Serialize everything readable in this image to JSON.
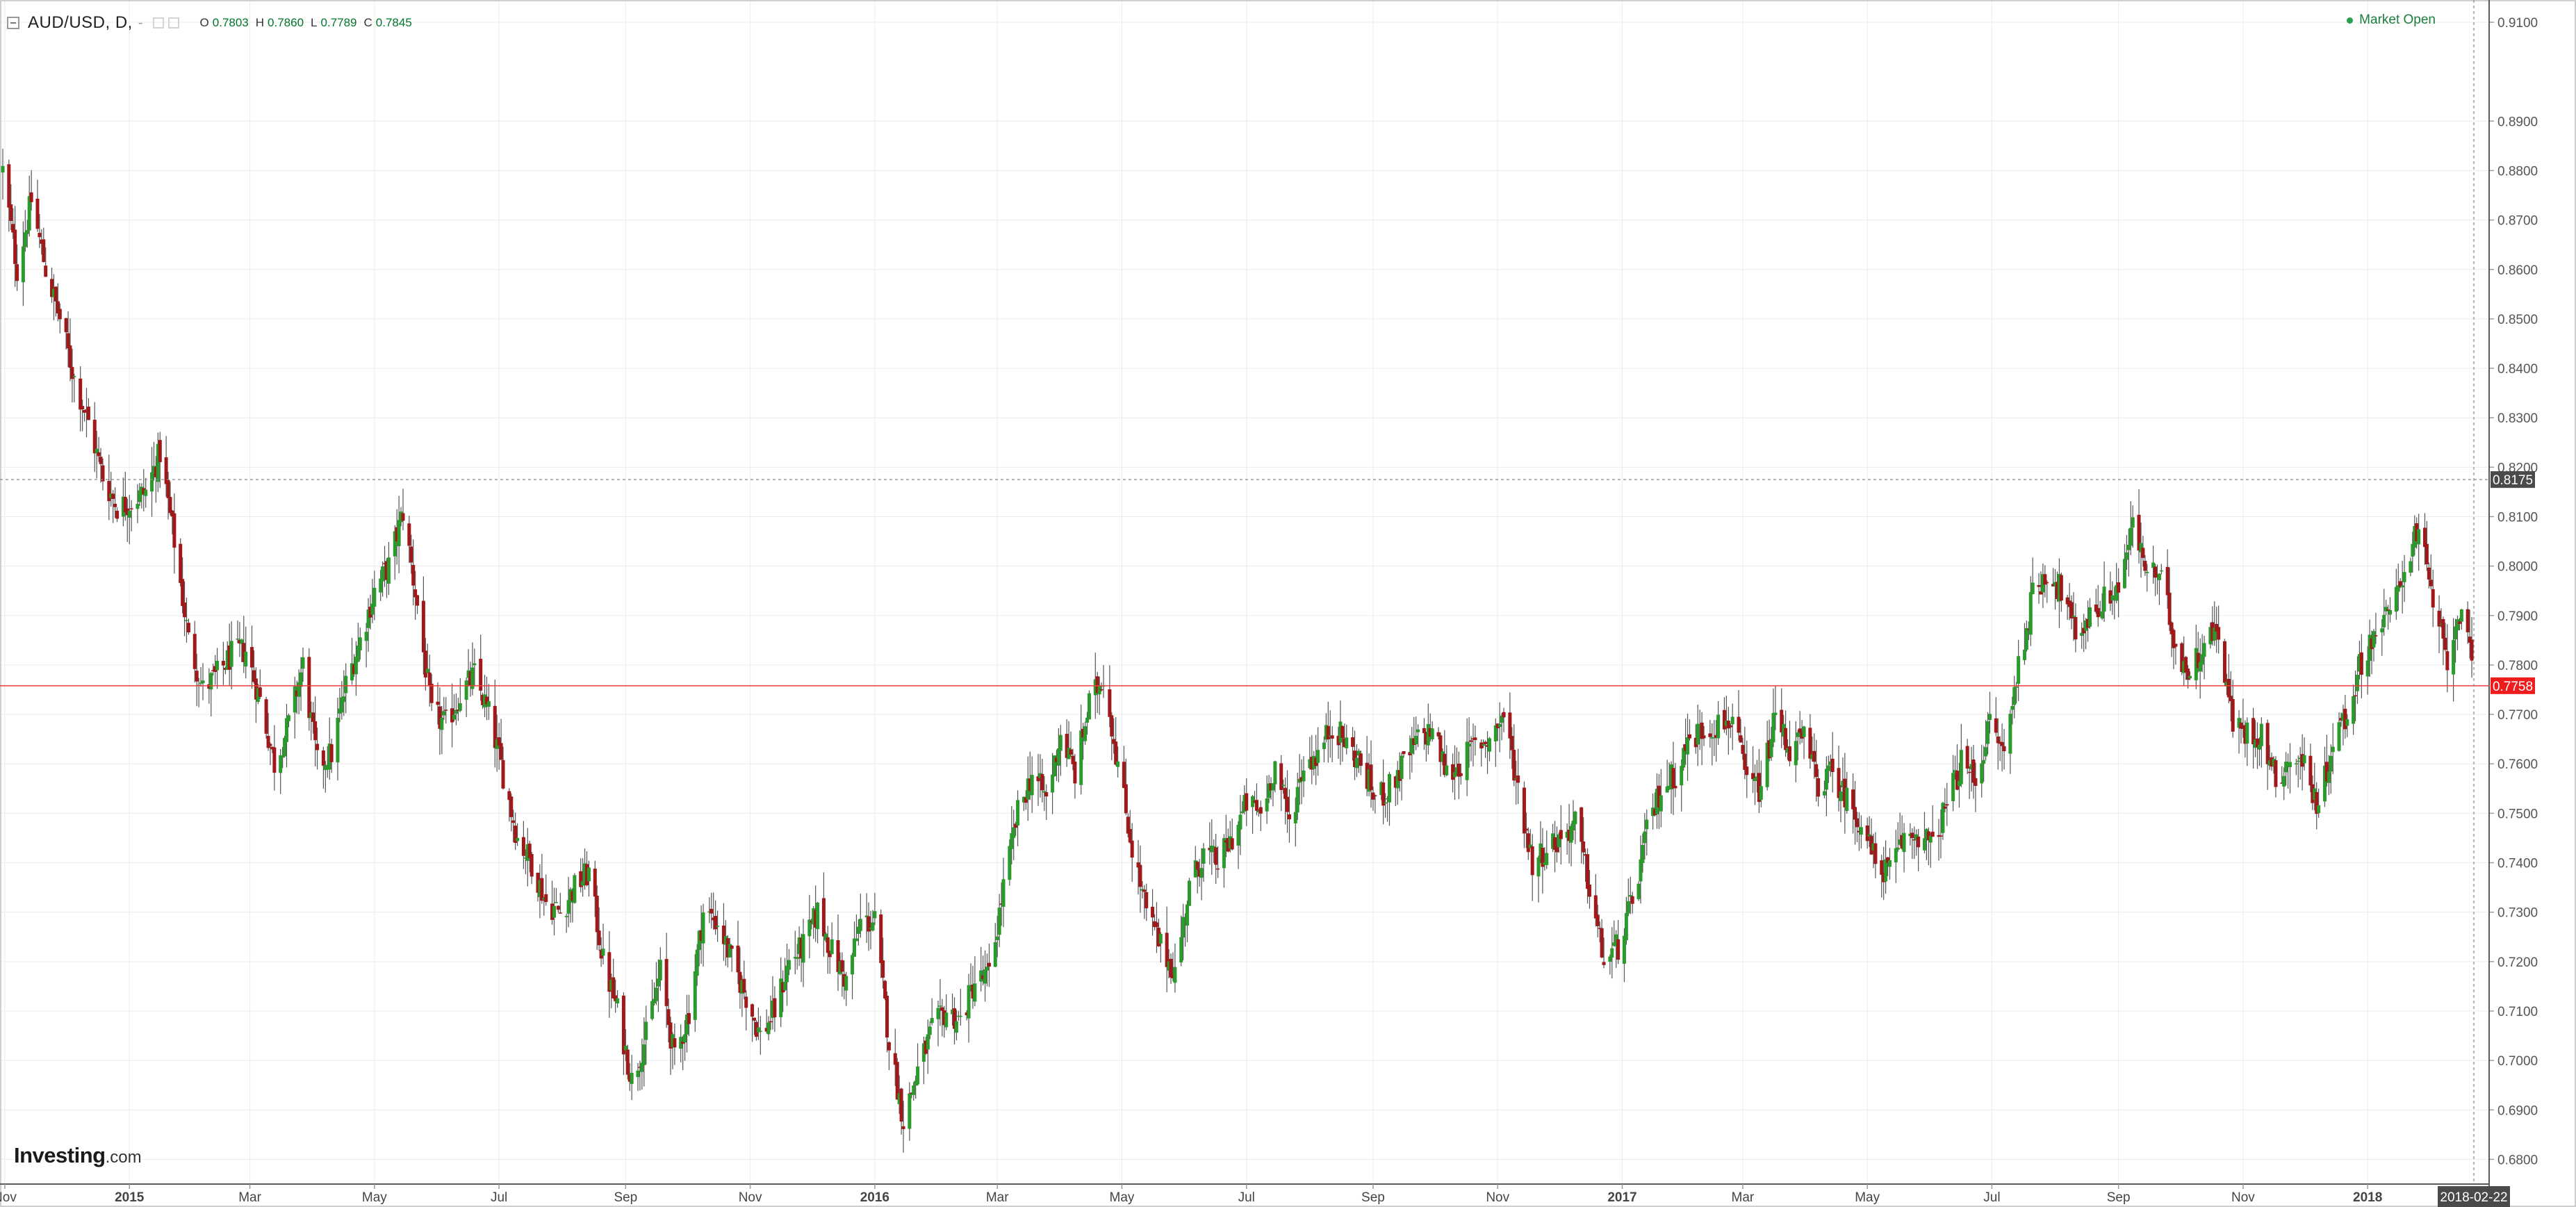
{
  "header": {
    "symbol": "AUD/USD, D,",
    "ohlc": [
      {
        "k": "O",
        "v": "0.7803"
      },
      {
        "k": "H",
        "v": "0.7860"
      },
      {
        "k": "L",
        "v": "0.7789"
      },
      {
        "k": "C",
        "v": "0.7845"
      }
    ]
  },
  "market_status": "Market Open",
  "logo": {
    "main": "Investing",
    "suffix": ".com"
  },
  "colors": {
    "up": "#2a9a2a",
    "down": "#a11818",
    "wick": "#555555",
    "grid": "#ececec",
    "price_line": "#ef3b3b"
  },
  "chart_data": {
    "type": "candlestick",
    "instrument": "AUD/USD",
    "timeframe": "D",
    "date_range": [
      "2014-10-31",
      "2018-02-22"
    ],
    "ylim": [
      0.675,
      0.9145
    ],
    "y_ticks": [
      "0.6800",
      "0.6900",
      "0.7000",
      "0.7100",
      "0.7200",
      "0.7300",
      "0.7400",
      "0.7500",
      "0.7600",
      "0.7700",
      "0.7800",
      "0.7900",
      "0.8000",
      "0.8100",
      "0.8200",
      "0.8300",
      "0.8400",
      "0.8500",
      "0.8600",
      "0.8700",
      "0.8800",
      "0.8900",
      "0.9100"
    ],
    "x_ticks": [
      {
        "label": "Nov",
        "date": "2014-11-01",
        "bold": false
      },
      {
        "label": "2015",
        "date": "2015-01-01",
        "bold": true
      },
      {
        "label": "Mar",
        "date": "2015-03-01",
        "bold": false
      },
      {
        "label": "May",
        "date": "2015-05-01",
        "bold": false
      },
      {
        "label": "Jul",
        "date": "2015-07-01",
        "bold": false
      },
      {
        "label": "Sep",
        "date": "2015-09-01",
        "bold": false
      },
      {
        "label": "Nov",
        "date": "2015-11-01",
        "bold": false
      },
      {
        "label": "2016",
        "date": "2016-01-01",
        "bold": true
      },
      {
        "label": "Mar",
        "date": "2016-03-01",
        "bold": false
      },
      {
        "label": "May",
        "date": "2016-05-01",
        "bold": false
      },
      {
        "label": "Jul",
        "date": "2016-07-01",
        "bold": false
      },
      {
        "label": "Sep",
        "date": "2016-09-01",
        "bold": false
      },
      {
        "label": "Nov",
        "date": "2016-11-01",
        "bold": false
      },
      {
        "label": "2017",
        "date": "2017-01-01",
        "bold": true
      },
      {
        "label": "Mar",
        "date": "2017-03-01",
        "bold": false
      },
      {
        "label": "May",
        "date": "2017-05-01",
        "bold": false
      },
      {
        "label": "Jul",
        "date": "2017-07-01",
        "bold": false
      },
      {
        "label": "Sep",
        "date": "2017-09-01",
        "bold": false
      },
      {
        "label": "Nov",
        "date": "2017-11-01",
        "bold": false
      },
      {
        "label": "2018",
        "date": "2018-01-01",
        "bold": true
      }
    ],
    "current_date": "2018-02-22",
    "current_price": 0.7758,
    "current_price_label": "0.7758",
    "crosshair_price": 0.8175,
    "crosshair_price_label": "0.8175",
    "series": [
      {
        "date": "2014-10-31",
        "close": 0.88
      },
      {
        "date": "2014-11-07",
        "close": 0.86
      },
      {
        "date": "2014-11-14",
        "close": 0.874
      },
      {
        "date": "2014-11-21",
        "close": 0.86
      },
      {
        "date": "2014-11-28",
        "close": 0.85
      },
      {
        "date": "2014-12-05",
        "close": 0.838
      },
      {
        "date": "2014-12-12",
        "close": 0.829
      },
      {
        "date": "2014-12-19",
        "close": 0.818
      },
      {
        "date": "2014-12-26",
        "close": 0.812
      },
      {
        "date": "2015-01-02",
        "close": 0.813
      },
      {
        "date": "2015-01-09",
        "close": 0.815
      },
      {
        "date": "2015-01-16",
        "close": 0.823
      },
      {
        "date": "2015-01-23",
        "close": 0.805
      },
      {
        "date": "2015-01-30",
        "close": 0.785
      },
      {
        "date": "2015-02-06",
        "close": 0.775
      },
      {
        "date": "2015-02-13",
        "close": 0.778
      },
      {
        "date": "2015-02-20",
        "close": 0.782
      },
      {
        "date": "2015-02-27",
        "close": 0.783
      },
      {
        "date": "2015-03-06",
        "close": 0.773
      },
      {
        "date": "2015-03-13",
        "close": 0.76
      },
      {
        "date": "2015-03-20",
        "close": 0.768
      },
      {
        "date": "2015-03-27",
        "close": 0.78
      },
      {
        "date": "2015-04-03",
        "close": 0.76
      },
      {
        "date": "2015-04-10",
        "close": 0.762
      },
      {
        "date": "2015-04-17",
        "close": 0.776
      },
      {
        "date": "2015-04-24",
        "close": 0.785
      },
      {
        "date": "2015-05-01",
        "close": 0.795
      },
      {
        "date": "2015-05-08",
        "close": 0.8
      },
      {
        "date": "2015-05-15",
        "close": 0.811
      },
      {
        "date": "2015-05-22",
        "close": 0.792
      },
      {
        "date": "2015-05-29",
        "close": 0.77
      },
      {
        "date": "2015-06-05",
        "close": 0.768
      },
      {
        "date": "2015-06-12",
        "close": 0.774
      },
      {
        "date": "2015-06-19",
        "close": 0.778
      },
      {
        "date": "2015-06-26",
        "close": 0.77
      },
      {
        "date": "2015-07-03",
        "close": 0.758
      },
      {
        "date": "2015-07-10",
        "close": 0.745
      },
      {
        "date": "2015-07-17",
        "close": 0.74
      },
      {
        "date": "2015-07-24",
        "close": 0.732
      },
      {
        "date": "2015-07-31",
        "close": 0.73
      },
      {
        "date": "2015-08-07",
        "close": 0.735
      },
      {
        "date": "2015-08-14",
        "close": 0.738
      },
      {
        "date": "2015-08-21",
        "close": 0.72
      },
      {
        "date": "2015-08-28",
        "close": 0.71
      },
      {
        "date": "2015-09-04",
        "close": 0.696
      },
      {
        "date": "2015-09-11",
        "close": 0.705
      },
      {
        "date": "2015-09-18",
        "close": 0.718
      },
      {
        "date": "2015-09-25",
        "close": 0.7
      },
      {
        "date": "2015-10-02",
        "close": 0.71
      },
      {
        "date": "2015-10-09",
        "close": 0.73
      },
      {
        "date": "2015-10-16",
        "close": 0.728
      },
      {
        "date": "2015-10-23",
        "close": 0.72
      },
      {
        "date": "2015-10-30",
        "close": 0.713
      },
      {
        "date": "2015-11-06",
        "close": 0.705
      },
      {
        "date": "2015-11-13",
        "close": 0.71
      },
      {
        "date": "2015-11-20",
        "close": 0.72
      },
      {
        "date": "2015-11-27",
        "close": 0.723
      },
      {
        "date": "2015-12-04",
        "close": 0.73
      },
      {
        "date": "2015-12-11",
        "close": 0.722
      },
      {
        "date": "2015-12-18",
        "close": 0.716
      },
      {
        "date": "2015-12-25",
        "close": 0.728
      },
      {
        "date": "2016-01-01",
        "close": 0.728
      },
      {
        "date": "2016-01-08",
        "close": 0.704
      },
      {
        "date": "2016-01-15",
        "close": 0.688
      },
      {
        "date": "2016-01-22",
        "close": 0.698
      },
      {
        "date": "2016-01-29",
        "close": 0.706
      },
      {
        "date": "2016-02-05",
        "close": 0.71
      },
      {
        "date": "2016-02-12",
        "close": 0.708
      },
      {
        "date": "2016-02-19",
        "close": 0.716
      },
      {
        "date": "2016-02-26",
        "close": 0.717
      },
      {
        "date": "2016-03-04",
        "close": 0.735
      },
      {
        "date": "2016-03-11",
        "close": 0.75
      },
      {
        "date": "2016-03-18",
        "close": 0.758
      },
      {
        "date": "2016-03-25",
        "close": 0.753
      },
      {
        "date": "2016-04-01",
        "close": 0.766
      },
      {
        "date": "2016-04-08",
        "close": 0.758
      },
      {
        "date": "2016-04-15",
        "close": 0.772
      },
      {
        "date": "2016-04-22",
        "close": 0.778
      },
      {
        "date": "2016-04-29",
        "close": 0.76
      },
      {
        "date": "2016-05-06",
        "close": 0.743
      },
      {
        "date": "2016-05-13",
        "close": 0.73
      },
      {
        "date": "2016-05-20",
        "close": 0.723
      },
      {
        "date": "2016-05-27",
        "close": 0.718
      },
      {
        "date": "2016-06-03",
        "close": 0.735
      },
      {
        "date": "2016-06-10",
        "close": 0.742
      },
      {
        "date": "2016-06-17",
        "close": 0.74
      },
      {
        "date": "2016-06-24",
        "close": 0.745
      },
      {
        "date": "2016-07-01",
        "close": 0.752
      },
      {
        "date": "2016-07-08",
        "close": 0.75
      },
      {
        "date": "2016-07-15",
        "close": 0.76
      },
      {
        "date": "2016-07-22",
        "close": 0.748
      },
      {
        "date": "2016-07-29",
        "close": 0.76
      },
      {
        "date": "2016-08-05",
        "close": 0.762
      },
      {
        "date": "2016-08-12",
        "close": 0.768
      },
      {
        "date": "2016-08-19",
        "close": 0.764
      },
      {
        "date": "2016-08-26",
        "close": 0.76
      },
      {
        "date": "2016-09-02",
        "close": 0.753
      },
      {
        "date": "2016-09-09",
        "close": 0.755
      },
      {
        "date": "2016-09-16",
        "close": 0.76
      },
      {
        "date": "2016-09-23",
        "close": 0.765
      },
      {
        "date": "2016-09-30",
        "close": 0.767
      },
      {
        "date": "2016-10-07",
        "close": 0.758
      },
      {
        "date": "2016-10-14",
        "close": 0.76
      },
      {
        "date": "2016-10-21",
        "close": 0.764
      },
      {
        "date": "2016-10-28",
        "close": 0.765
      },
      {
        "date": "2016-11-04",
        "close": 0.77
      },
      {
        "date": "2016-11-11",
        "close": 0.755
      },
      {
        "date": "2016-11-18",
        "close": 0.74
      },
      {
        "date": "2016-11-25",
        "close": 0.743
      },
      {
        "date": "2016-12-02",
        "close": 0.745
      },
      {
        "date": "2016-12-09",
        "close": 0.748
      },
      {
        "date": "2016-12-16",
        "close": 0.735
      },
      {
        "date": "2016-12-23",
        "close": 0.72
      },
      {
        "date": "2016-12-30",
        "close": 0.723
      },
      {
        "date": "2017-01-06",
        "close": 0.732
      },
      {
        "date": "2017-01-13",
        "close": 0.746
      },
      {
        "date": "2017-01-20",
        "close": 0.755
      },
      {
        "date": "2017-01-27",
        "close": 0.758
      },
      {
        "date": "2017-02-03",
        "close": 0.765
      },
      {
        "date": "2017-02-10",
        "close": 0.767
      },
      {
        "date": "2017-02-17",
        "close": 0.768
      },
      {
        "date": "2017-02-24",
        "close": 0.769
      },
      {
        "date": "2017-03-03",
        "close": 0.756
      },
      {
        "date": "2017-03-10",
        "close": 0.755
      },
      {
        "date": "2017-03-17",
        "close": 0.77
      },
      {
        "date": "2017-03-24",
        "close": 0.763
      },
      {
        "date": "2017-03-31",
        "close": 0.765
      },
      {
        "date": "2017-04-07",
        "close": 0.756
      },
      {
        "date": "2017-04-14",
        "close": 0.758
      },
      {
        "date": "2017-04-21",
        "close": 0.753
      },
      {
        "date": "2017-04-28",
        "close": 0.748
      },
      {
        "date": "2017-05-05",
        "close": 0.74
      },
      {
        "date": "2017-05-12",
        "close": 0.738
      },
      {
        "date": "2017-05-19",
        "close": 0.745
      },
      {
        "date": "2017-05-26",
        "close": 0.746
      },
      {
        "date": "2017-06-02",
        "close": 0.743
      },
      {
        "date": "2017-06-09",
        "close": 0.752
      },
      {
        "date": "2017-06-16",
        "close": 0.76
      },
      {
        "date": "2017-06-23",
        "close": 0.757
      },
      {
        "date": "2017-06-30",
        "close": 0.768
      },
      {
        "date": "2017-07-07",
        "close": 0.762
      },
      {
        "date": "2017-07-14",
        "close": 0.78
      },
      {
        "date": "2017-07-21",
        "close": 0.794
      },
      {
        "date": "2017-07-28",
        "close": 0.799
      },
      {
        "date": "2017-08-04",
        "close": 0.795
      },
      {
        "date": "2017-08-11",
        "close": 0.786
      },
      {
        "date": "2017-08-18",
        "close": 0.79
      },
      {
        "date": "2017-08-25",
        "close": 0.793
      },
      {
        "date": "2017-09-01",
        "close": 0.796
      },
      {
        "date": "2017-09-08",
        "close": 0.808
      },
      {
        "date": "2017-09-15",
        "close": 0.799
      },
      {
        "date": "2017-09-22",
        "close": 0.797
      },
      {
        "date": "2017-09-29",
        "close": 0.784
      },
      {
        "date": "2017-10-06",
        "close": 0.778
      },
      {
        "date": "2017-10-13",
        "close": 0.785
      },
      {
        "date": "2017-10-20",
        "close": 0.787
      },
      {
        "date": "2017-10-27",
        "close": 0.768
      },
      {
        "date": "2017-11-03",
        "close": 0.766
      },
      {
        "date": "2017-11-10",
        "close": 0.766
      },
      {
        "date": "2017-11-17",
        "close": 0.757
      },
      {
        "date": "2017-11-24",
        "close": 0.761
      },
      {
        "date": "2017-12-01",
        "close": 0.76
      },
      {
        "date": "2017-12-08",
        "close": 0.751
      },
      {
        "date": "2017-12-15",
        "close": 0.765
      },
      {
        "date": "2017-12-22",
        "close": 0.77
      },
      {
        "date": "2017-12-29",
        "close": 0.781
      },
      {
        "date": "2018-01-05",
        "close": 0.787
      },
      {
        "date": "2018-01-12",
        "close": 0.79
      },
      {
        "date": "2018-01-19",
        "close": 0.8
      },
      {
        "date": "2018-01-26",
        "close": 0.808
      },
      {
        "date": "2018-02-02",
        "close": 0.792
      },
      {
        "date": "2018-02-09",
        "close": 0.781
      },
      {
        "date": "2018-02-16",
        "close": 0.793
      },
      {
        "date": "2018-02-22",
        "close": 0.7758
      }
    ]
  }
}
